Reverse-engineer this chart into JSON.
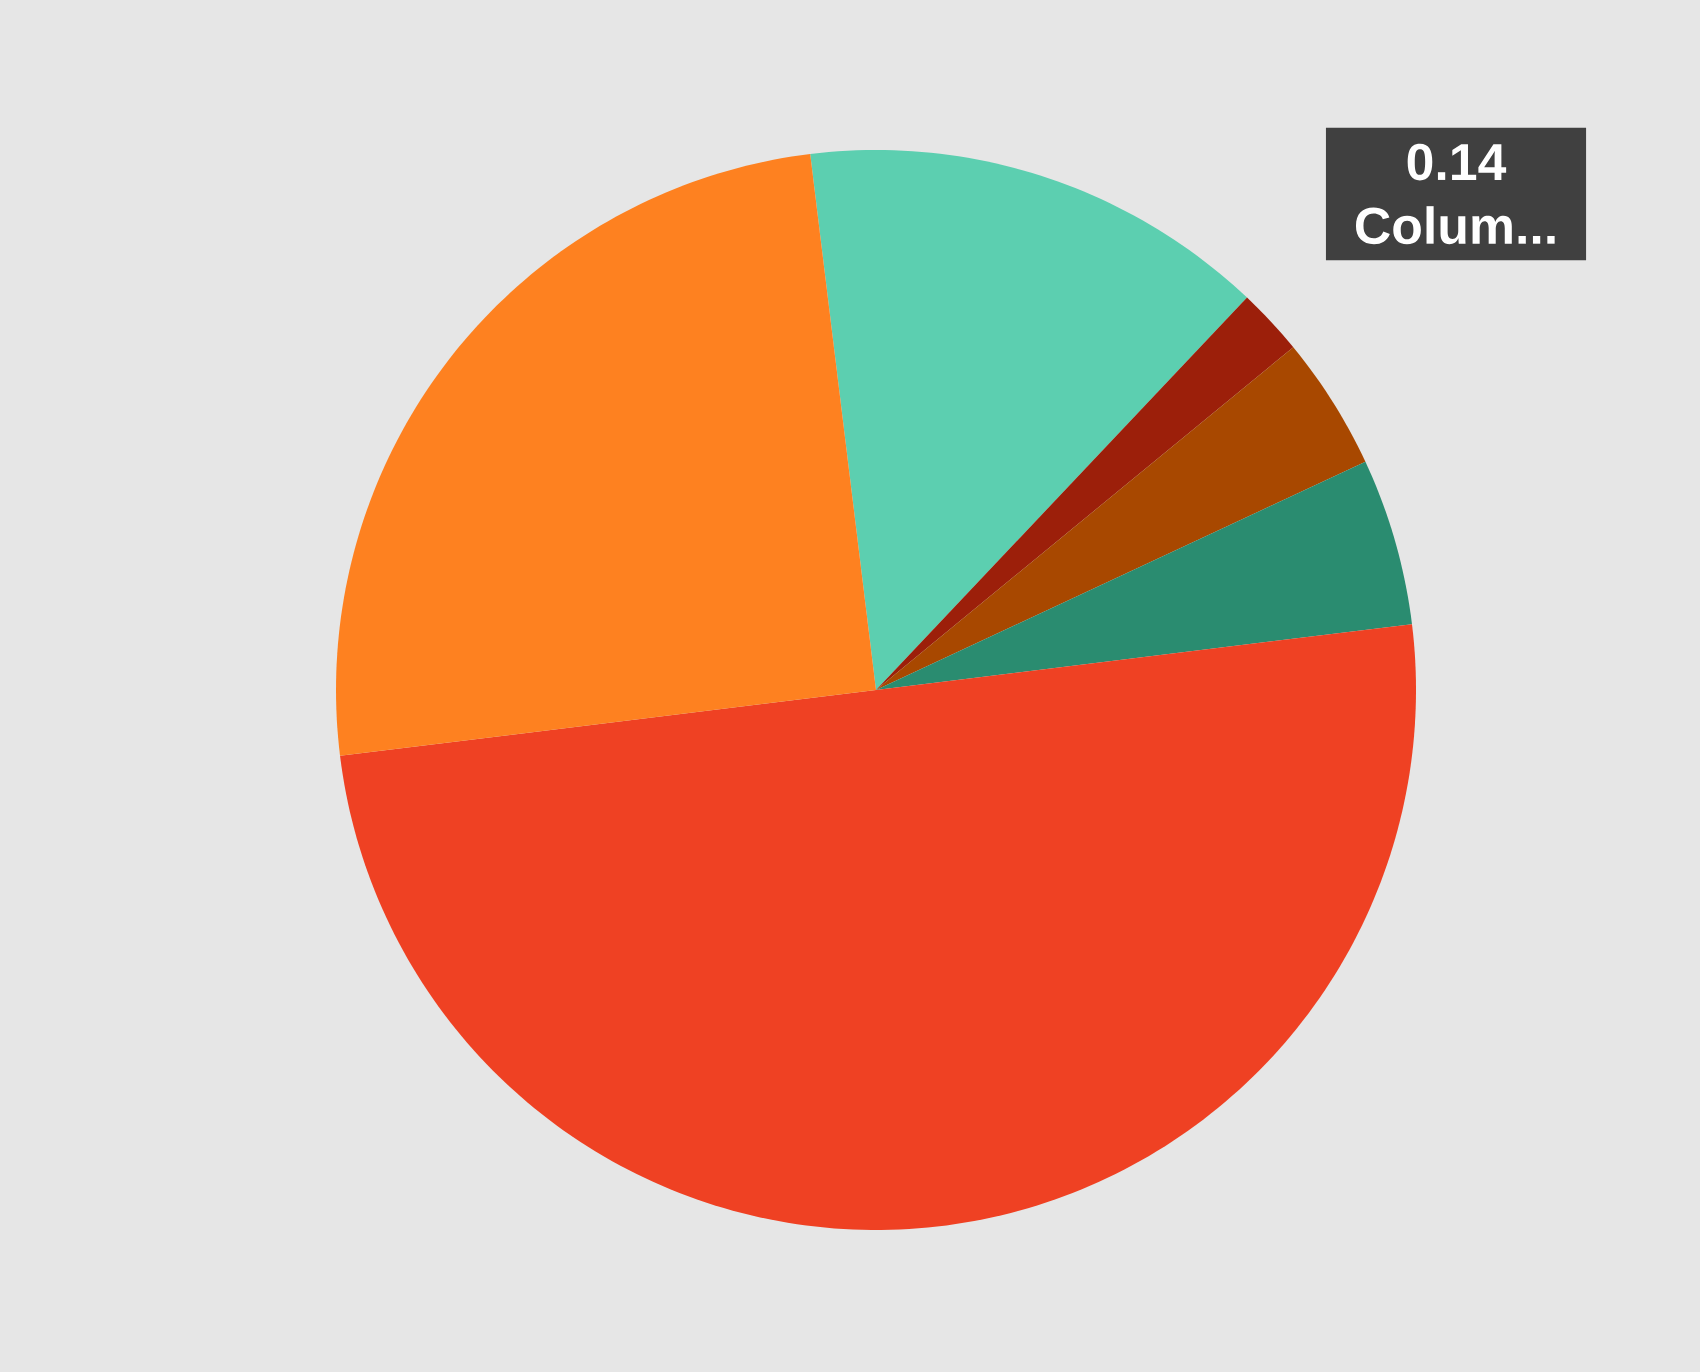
{
  "chart_data": {
    "type": "pie",
    "categories": [
      "Colum...",
      null,
      null,
      null,
      null,
      null
    ],
    "values": [
      0.14,
      0.02,
      0.04,
      0.05,
      0.5,
      0.25
    ],
    "colors": [
      "#5ccfb0",
      "#9c1f0a",
      "#a84800",
      "#2a8c70",
      "#ef4123",
      "#fe8120"
    ],
    "value_labels": [
      "0.14",
      null,
      null,
      null,
      null,
      null
    ]
  }
}
